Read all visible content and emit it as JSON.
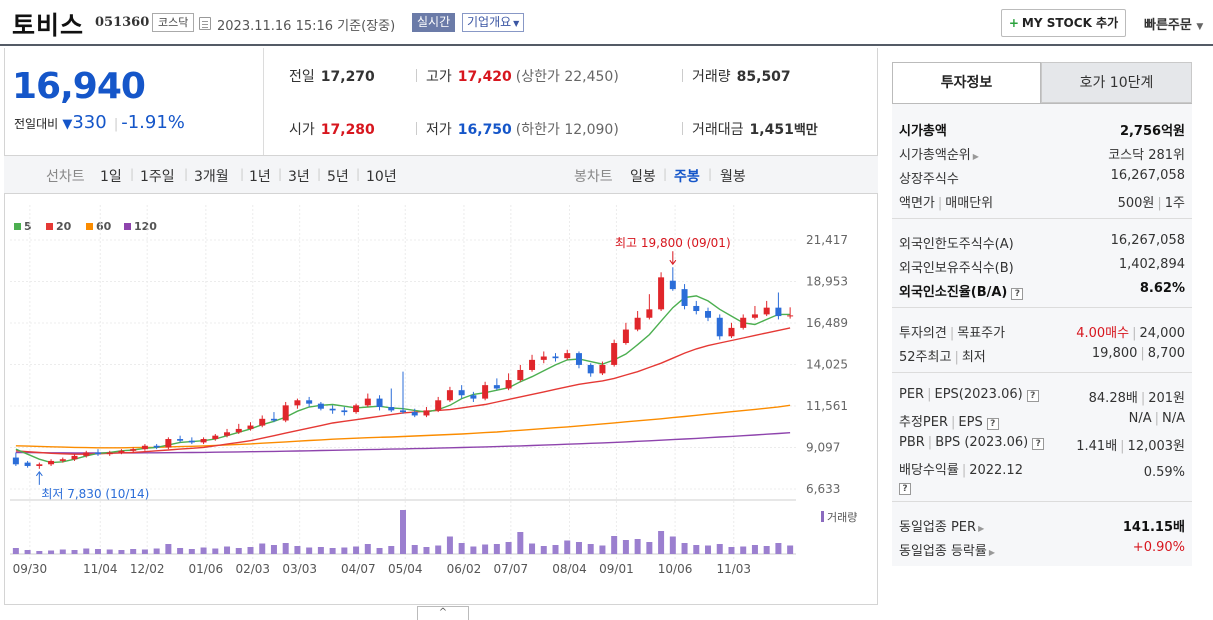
{
  "header": {
    "company_name": "토비스",
    "stock_code": "051360",
    "market": "코스닥",
    "datetime": "2023.11.16 15:16 기준(장중)",
    "realtime_label": "실시간",
    "overview_label": "기업개요",
    "mystock_label": "MY STOCK 추가",
    "quick_order_label": "빠른주문"
  },
  "price": {
    "current": "16,940",
    "change_label": "전일대비",
    "change_value": "330",
    "change_rate": "-1.91%"
  },
  "metrics": {
    "prev_close_label": "전일",
    "prev_close": "17,270",
    "high_label": "고가",
    "high": "17,420",
    "upper_limit": "(상한가 22,450)",
    "volume_label": "거래량",
    "volume": "85,507",
    "open_label": "시가",
    "open": "17,280",
    "low_label": "저가",
    "low": "16,750",
    "lower_limit": "(하한가 12,090)",
    "amount_label": "거래대금",
    "amount": "1,451",
    "amount_unit": "백만"
  },
  "periods": {
    "line_title": "선차트",
    "line_options": [
      "1일",
      "1주일",
      "3개월",
      "1년",
      "3년",
      "5년",
      "10년"
    ],
    "candle_title": "봉차트",
    "candle_options": [
      "일봉",
      "주봉",
      "월봉"
    ],
    "active_candle": "주봉"
  },
  "chart_data": {
    "type": "candlestick",
    "legend": [
      "5",
      "20",
      "60",
      "120"
    ],
    "legend_colors": [
      "#4caf50",
      "#e53935",
      "#fb8c00",
      "#8e44ad"
    ],
    "y_ticks": [
      "21,417",
      "18,953",
      "16,489",
      "14,025",
      "11,561",
      "9,097",
      "6,633"
    ],
    "ylim": [
      6633,
      21417
    ],
    "x_ticks": [
      "09/30",
      "11/04",
      "12/02",
      "01/06",
      "02/03",
      "03/03",
      "04/07",
      "05/04",
      "06/02",
      "07/07",
      "08/04",
      "09/01",
      "10/06",
      "11/03"
    ],
    "max_annotation": "최고 19,800 (09/01)",
    "min_annotation": "최저 7,830 (10/14)",
    "volume_label": "거래량",
    "candles": [
      [
        8500,
        8100,
        8800,
        8000
      ],
      [
        8200,
        8000,
        8300,
        7900
      ],
      [
        8000,
        8100,
        8200,
        7830
      ],
      [
        8100,
        8300,
        8400,
        8000
      ],
      [
        8300,
        8400,
        8500,
        8200
      ],
      [
        8400,
        8600,
        8700,
        8300
      ],
      [
        8600,
        8800,
        8900,
        8500
      ],
      [
        8800,
        8700,
        9000,
        8600
      ],
      [
        8700,
        8800,
        8900,
        8600
      ],
      [
        8800,
        8900,
        9000,
        8700
      ],
      [
        8900,
        9000,
        9100,
        8800
      ],
      [
        9000,
        9200,
        9300,
        8900
      ],
      [
        9200,
        9100,
        9300,
        9000
      ],
      [
        9100,
        9600,
        9700,
        9000
      ],
      [
        9600,
        9500,
        9800,
        9400
      ],
      [
        9500,
        9400,
        9700,
        9300
      ],
      [
        9400,
        9600,
        9700,
        9300
      ],
      [
        9600,
        9800,
        9900,
        9500
      ],
      [
        9800,
        10000,
        10200,
        9700
      ],
      [
        10000,
        10200,
        10500,
        9900
      ],
      [
        10200,
        10400,
        10600,
        10100
      ],
      [
        10400,
        10800,
        11000,
        10300
      ],
      [
        10800,
        10700,
        11200,
        10600
      ],
      [
        10700,
        11600,
        11800,
        10600
      ],
      [
        11600,
        11900,
        12000,
        11400
      ],
      [
        11900,
        11700,
        12100,
        11500
      ],
      [
        11700,
        11400,
        11800,
        11300
      ],
      [
        11400,
        11300,
        11600,
        11100
      ],
      [
        11300,
        11200,
        11500,
        11000
      ],
      [
        11200,
        11600,
        11700,
        11100
      ],
      [
        11600,
        12000,
        12300,
        11500
      ],
      [
        12000,
        11500,
        12200,
        11300
      ],
      [
        11500,
        11300,
        12600,
        11200
      ],
      [
        11300,
        11200,
        13600,
        11100
      ],
      [
        11200,
        11000,
        11400,
        10900
      ],
      [
        11000,
        11300,
        11500,
        10900
      ],
      [
        11300,
        11900,
        12100,
        11200
      ],
      [
        11900,
        12500,
        12700,
        11800
      ],
      [
        12500,
        12200,
        12800,
        12000
      ],
      [
        12200,
        12000,
        12400,
        11800
      ],
      [
        12000,
        12800,
        13000,
        11900
      ],
      [
        12800,
        12600,
        13200,
        12500
      ],
      [
        12600,
        13100,
        13500,
        12500
      ],
      [
        13100,
        13700,
        14000,
        13000
      ],
      [
        13700,
        14300,
        14600,
        13600
      ],
      [
        14300,
        14500,
        14800,
        14100
      ],
      [
        14500,
        14400,
        14700,
        14200
      ],
      [
        14400,
        14700,
        14900,
        14300
      ],
      [
        14700,
        14000,
        14800,
        13800
      ],
      [
        14000,
        13500,
        14100,
        13300
      ],
      [
        13500,
        14000,
        14200,
        13400
      ],
      [
        14000,
        15300,
        15500,
        13900
      ],
      [
        15300,
        16100,
        16500,
        15200
      ],
      [
        16100,
        16800,
        17200,
        16000
      ],
      [
        16800,
        17300,
        18200,
        16700
      ],
      [
        17300,
        19200,
        19500,
        17200
      ],
      [
        19000,
        18500,
        19800,
        18400
      ],
      [
        18500,
        17500,
        18800,
        17300
      ],
      [
        17500,
        17200,
        17800,
        17000
      ],
      [
        17200,
        16800,
        17400,
        16600
      ],
      [
        16800,
        15700,
        17000,
        15500
      ],
      [
        15700,
        16200,
        16500,
        15600
      ],
      [
        16200,
        16800,
        17000,
        16100
      ],
      [
        16800,
        17000,
        17500,
        16700
      ],
      [
        17000,
        17400,
        17800,
        16900
      ],
      [
        17400,
        16900,
        18300,
        16700
      ],
      [
        16900,
        16940,
        17420,
        16750
      ]
    ],
    "ma5": [
      9000,
      8700,
      8400,
      8200,
      8250,
      8400,
      8600,
      8750,
      8800,
      8900,
      8950,
      9050,
      9100,
      9250,
      9400,
      9450,
      9500,
      9600,
      9800,
      10000,
      10200,
      10450,
      10650,
      10900,
      11250,
      11500,
      11600,
      11650,
      11550,
      11450,
      11500,
      11550,
      11450,
      11400,
      11300,
      11200,
      11350,
      11600,
      12000,
      12250,
      12350,
      12500,
      12650,
      13000,
      13300,
      13650,
      14000,
      14300,
      14350,
      14200,
      14050,
      14300,
      14650,
      15200,
      15800,
      16600,
      17400,
      18000,
      18100,
      17800,
      17300,
      16900,
      16500,
      16400,
      16700,
      17000,
      17000
    ],
    "ma20": [
      8900,
      8850,
      8800,
      8750,
      8720,
      8700,
      8700,
      8720,
      8750,
      8780,
      8800,
      8850,
      8900,
      8950,
      9000,
      9050,
      9100,
      9200,
      9300,
      9400,
      9500,
      9650,
      9800,
      9950,
      10100,
      10250,
      10400,
      10550,
      10650,
      10750,
      10850,
      10950,
      11050,
      11150,
      11200,
      11250,
      11300,
      11350,
      11450,
      11550,
      11650,
      11800,
      11950,
      12100,
      12250,
      12400,
      12550,
      12700,
      12850,
      12950,
      13050,
      13200,
      13400,
      13600,
      13850,
      14100,
      14400,
      14700,
      14950,
      15150,
      15300,
      15450,
      15600,
      15750,
      15900,
      16050,
      16200
    ],
    "ma60": [
      9200,
      9180,
      9160,
      9140,
      9120,
      9100,
      9090,
      9080,
      9080,
      9080,
      9090,
      9100,
      9110,
      9130,
      9150,
      9170,
      9190,
      9220,
      9250,
      9280,
      9310,
      9350,
      9390,
      9430,
      9470,
      9510,
      9550,
      9590,
      9620,
      9650,
      9680,
      9700,
      9720,
      9750,
      9780,
      9810,
      9840,
      9870,
      9900,
      9940,
      9980,
      10020,
      10070,
      10120,
      10170,
      10220,
      10270,
      10320,
      10380,
      10440,
      10500,
      10560,
      10620,
      10680,
      10740,
      10800,
      10870,
      10940,
      11010,
      11080,
      11150,
      11220,
      11290,
      11360,
      11430,
      11510,
      11600
    ],
    "ma120": [
      8800,
      8795,
      8790,
      8785,
      8780,
      8778,
      8776,
      8775,
      8775,
      8776,
      8778,
      8780,
      8785,
      8790,
      8795,
      8800,
      8808,
      8816,
      8825,
      8835,
      8845,
      8855,
      8866,
      8878,
      8890,
      8903,
      8916,
      8930,
      8944,
      8958,
      8972,
      8986,
      9000,
      9015,
      9030,
      9045,
      9060,
      9078,
      9096,
      9114,
      9132,
      9152,
      9172,
      9194,
      9216,
      9240,
      9264,
      9290,
      9316,
      9344,
      9372,
      9402,
      9432,
      9464,
      9496,
      9530,
      9566,
      9602,
      9640,
      9678,
      9718,
      9758,
      9800,
      9842,
      9886,
      9930,
      9975
    ],
    "volumes": [
      12,
      8,
      6,
      7,
      9,
      8,
      11,
      10,
      9,
      8,
      10,
      9,
      11,
      20,
      12,
      10,
      13,
      11,
      15,
      12,
      14,
      21,
      18,
      22,
      16,
      13,
      14,
      12,
      13,
      15,
      20,
      12,
      16,
      88,
      18,
      14,
      17,
      35,
      22,
      15,
      19,
      20,
      24,
      44,
      21,
      16,
      18,
      27,
      24,
      20,
      17,
      36,
      28,
      30,
      24,
      46,
      35,
      22,
      18,
      17,
      20,
      14,
      15,
      18,
      16,
      22,
      17
    ]
  },
  "side": {
    "tab_active": "투자정보",
    "tab_idle": "호가 10단계",
    "market_cap_label": "시가총액",
    "market_cap": "2,756억원",
    "cap_rank_label": "시가총액순위",
    "cap_rank": "코스닥 281위",
    "shares_label": "상장주식수",
    "shares": "16,267,058",
    "par_label": "액면가",
    "unit_label": "매매단위",
    "par": "500원",
    "unit": "1주",
    "foreign_limit_label": "외국인한도주식수(A)",
    "foreign_limit": "16,267,058",
    "foreign_hold_label": "외국인보유주식수(B)",
    "foreign_hold": "1,402,894",
    "foreign_rate_label": "외국인소진율(B/A)",
    "foreign_rate": "8.62%",
    "opinion_label": "투자의견",
    "target_label": "목표주가",
    "opinion": "4.00매수",
    "target": "24,000",
    "w52_high_label": "52주최고",
    "w52_low_label": "최저",
    "w52_high": "19,800",
    "w52_low": "8,700",
    "per_label": "PER",
    "eps_label": "EPS(2023.06)",
    "per": "84.28배",
    "eps": "201원",
    "est_per_label": "추정PER",
    "est_eps_label": "EPS",
    "est_per": "N/A",
    "est_eps": "N/A",
    "pbr_label": "PBR",
    "bps_label": "BPS (2023.06)",
    "pbr": "1.41배",
    "bps": "12,003원",
    "div_label": "배당수익률",
    "div_year": "2022.12",
    "div": "0.59%",
    "ind_per_label": "동일업종 PER",
    "ind_per": "141.15배",
    "ind_rate_label": "동일업종 등락률",
    "ind_rate": "+0.90%"
  }
}
